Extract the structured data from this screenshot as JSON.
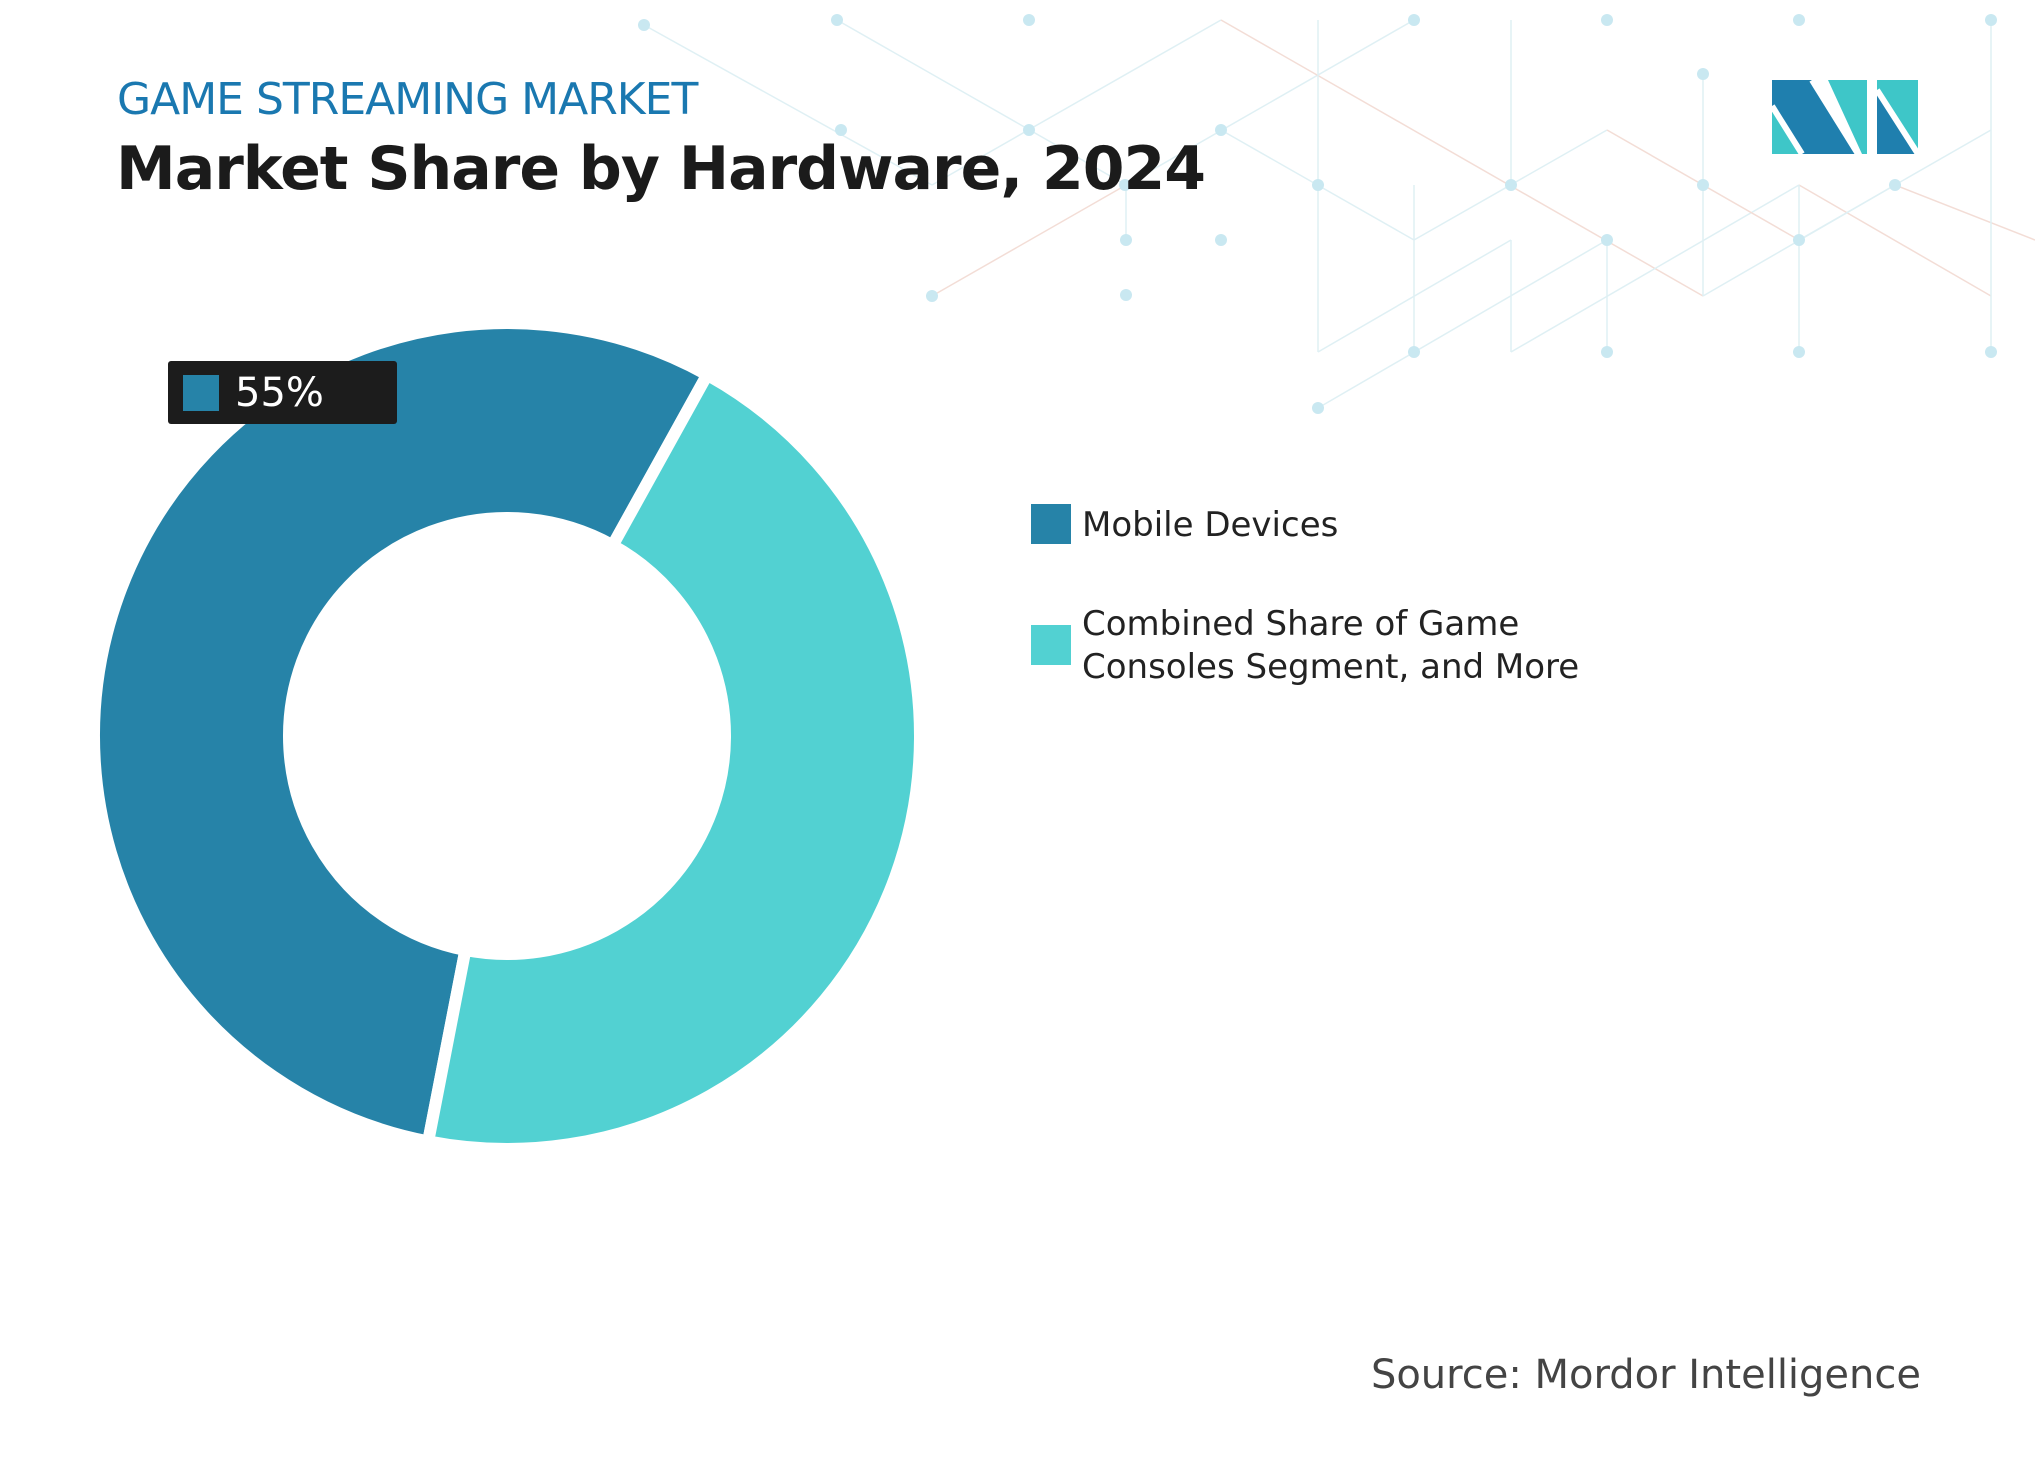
{
  "header": {
    "kicker": "GAME STREAMING MARKET",
    "title": "Market Share by Hardware, 2024"
  },
  "chart_data": {
    "type": "pie",
    "donut": true,
    "title": "Market Share by Hardware, 2024",
    "categories": [
      "Mobile Devices",
      "Combined Share of Game Consoles Segment, and More"
    ],
    "values": [
      55,
      45
    ],
    "colors": [
      "#2683a8",
      "#52d1d2"
    ],
    "data_labels": [
      {
        "category": "Mobile Devices",
        "text": "55%"
      }
    ],
    "legend_position": "right"
  },
  "legend": {
    "items": [
      {
        "label": "Mobile Devices",
        "color": "#2683a8"
      },
      {
        "label": "Combined Share of Game Consoles Segment, and More",
        "color": "#52d1d2"
      }
    ]
  },
  "source": "Source: Mordor Intelligence",
  "logo": {
    "text": "MI",
    "colors": [
      "#1f7fae",
      "#3ec6c8"
    ]
  }
}
